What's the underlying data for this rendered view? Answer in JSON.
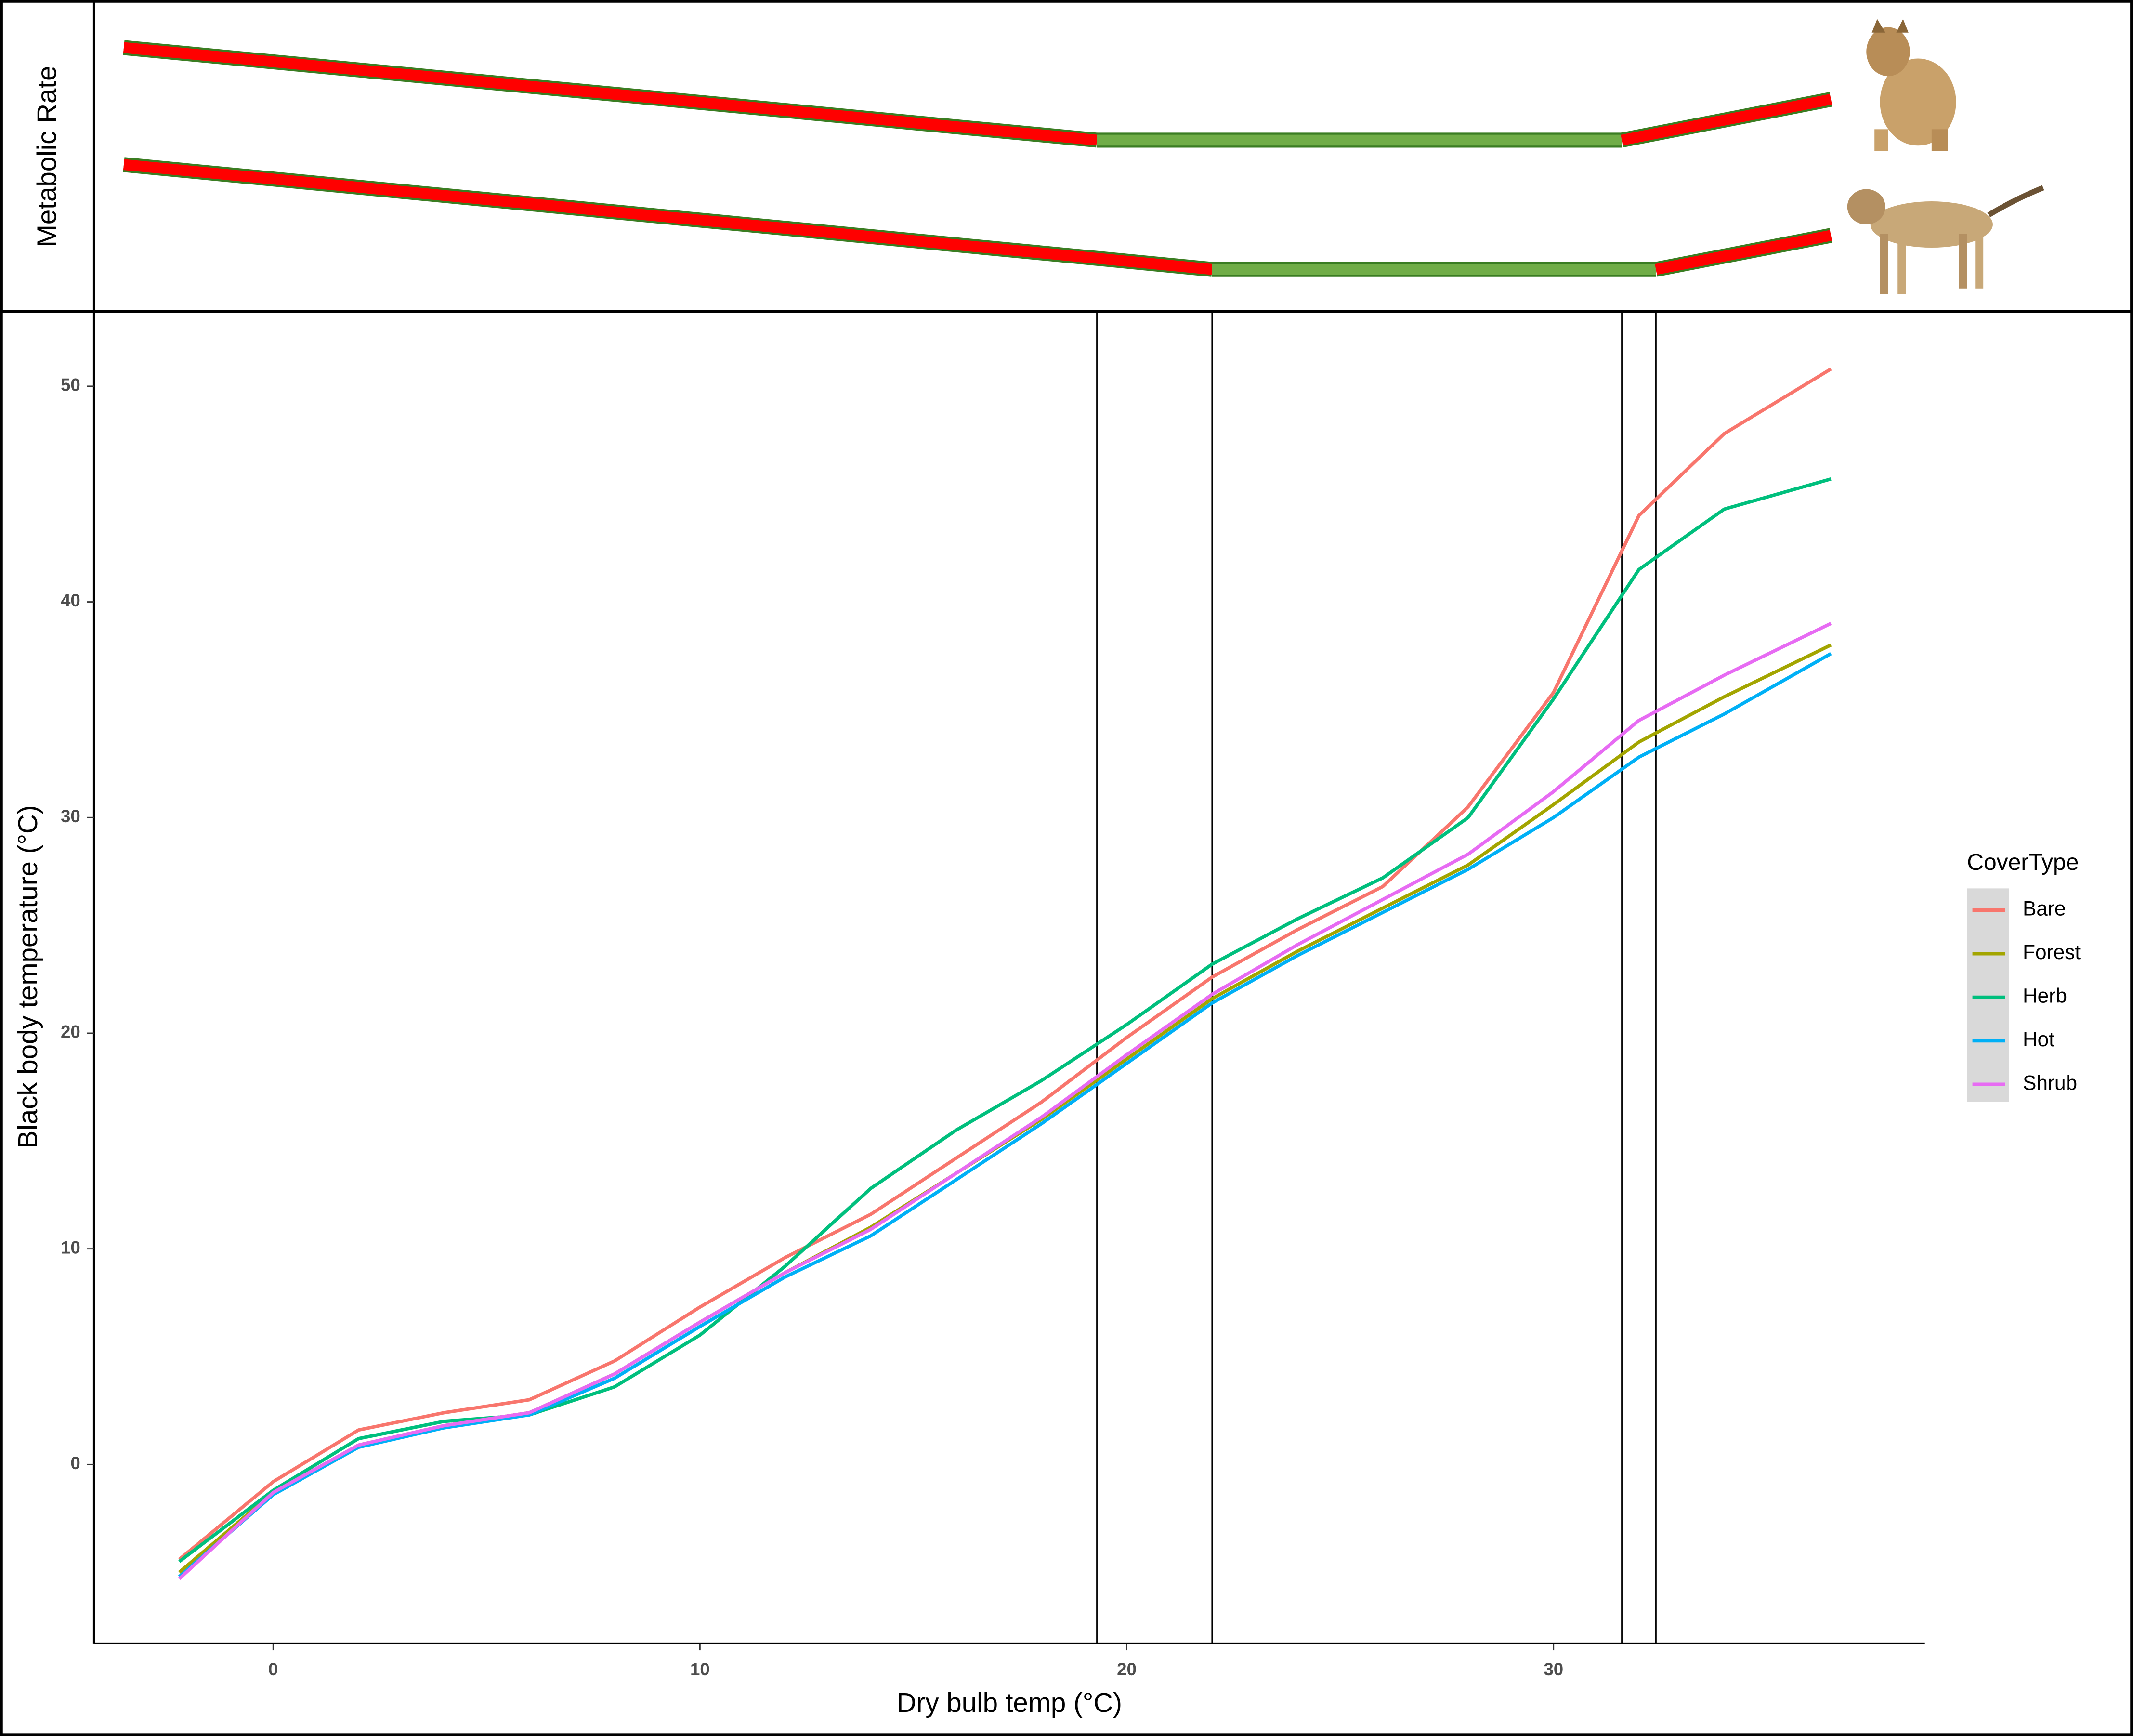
{
  "chart_data": [
    {
      "type": "line",
      "xlabel": "Dry bulb temp (°C)",
      "ylabel": "Black body temperature (°C)",
      "legend_title": "CoverType",
      "legend": "right",
      "x": [
        -2.2,
        0,
        2,
        4,
        6,
        8,
        10,
        12,
        14,
        16,
        18,
        20,
        22,
        24,
        26,
        28,
        30,
        32,
        34,
        36.5
      ],
      "series": [
        {
          "name": "Bare",
          "color": "#F8766D",
          "values": [
            -4.4,
            -0.8,
            1.6,
            2.4,
            3.0,
            4.8,
            7.3,
            9.6,
            11.6,
            14.2,
            16.8,
            19.8,
            22.6,
            24.8,
            26.8,
            30.5,
            35.8,
            44.0,
            47.8,
            50.8
          ]
        },
        {
          "name": "Forest",
          "color": "#A3A500",
          "values": [
            -5.0,
            -1.3,
            0.9,
            1.8,
            2.4,
            4.2,
            6.6,
            8.9,
            11.0,
            13.5,
            16.0,
            18.8,
            21.6,
            23.8,
            25.8,
            27.8,
            30.6,
            33.5,
            35.6,
            38.0
          ]
        },
        {
          "name": "Herb",
          "color": "#00BF7D",
          "values": [
            -4.5,
            -1.2,
            1.2,
            2.0,
            2.3,
            3.6,
            6.0,
            9.2,
            12.8,
            15.5,
            17.8,
            20.4,
            23.2,
            25.3,
            27.2,
            30.0,
            35.5,
            41.5,
            44.3,
            45.7
          ]
        },
        {
          "name": "Hot",
          "color": "#00B0F6",
          "values": [
            -5.2,
            -1.4,
            0.8,
            1.7,
            2.3,
            4.0,
            6.4,
            8.7,
            10.6,
            13.2,
            15.8,
            18.6,
            21.4,
            23.6,
            25.6,
            27.6,
            30.0,
            32.8,
            34.8,
            37.6
          ]
        },
        {
          "name": "Shrub",
          "color": "#E76BF3",
          "values": [
            -5.3,
            -1.3,
            0.9,
            1.8,
            2.4,
            4.2,
            6.6,
            8.9,
            10.9,
            13.5,
            16.1,
            19.0,
            21.8,
            24.1,
            26.2,
            28.3,
            31.2,
            34.5,
            36.6,
            39.0
          ]
        }
      ],
      "vlines": [
        19.3,
        22.0,
        31.6,
        32.4
      ],
      "xlim": [
        -4.2,
        38.7
      ],
      "ylim": [
        -8.3,
        53.4
      ],
      "xticks": [
        0,
        10,
        20,
        30
      ],
      "yticks": [
        0,
        10,
        20,
        30,
        40,
        50
      ]
    },
    {
      "type": "segments",
      "ylabel": "Metabolic Rate",
      "xlim": [
        -4.2,
        38.7
      ],
      "ylim": [
        0,
        1
      ],
      "series": [
        {
          "x": [
            -3.5,
            19.3,
            31.6,
            36.5
          ],
          "values": [
            0.9,
            0.56,
            0.56,
            0.71
          ],
          "segment_colors": [
            "#ff0000",
            "#70ad47",
            "#ff0000"
          ]
        },
        {
          "x": [
            -3.5,
            22.0,
            32.4,
            36.5
          ],
          "values": [
            0.47,
            0.085,
            0.085,
            0.21
          ],
          "segment_colors": [
            "#ff0000",
            "#70ad47",
            "#ff0000"
          ]
        }
      ]
    }
  ]
}
